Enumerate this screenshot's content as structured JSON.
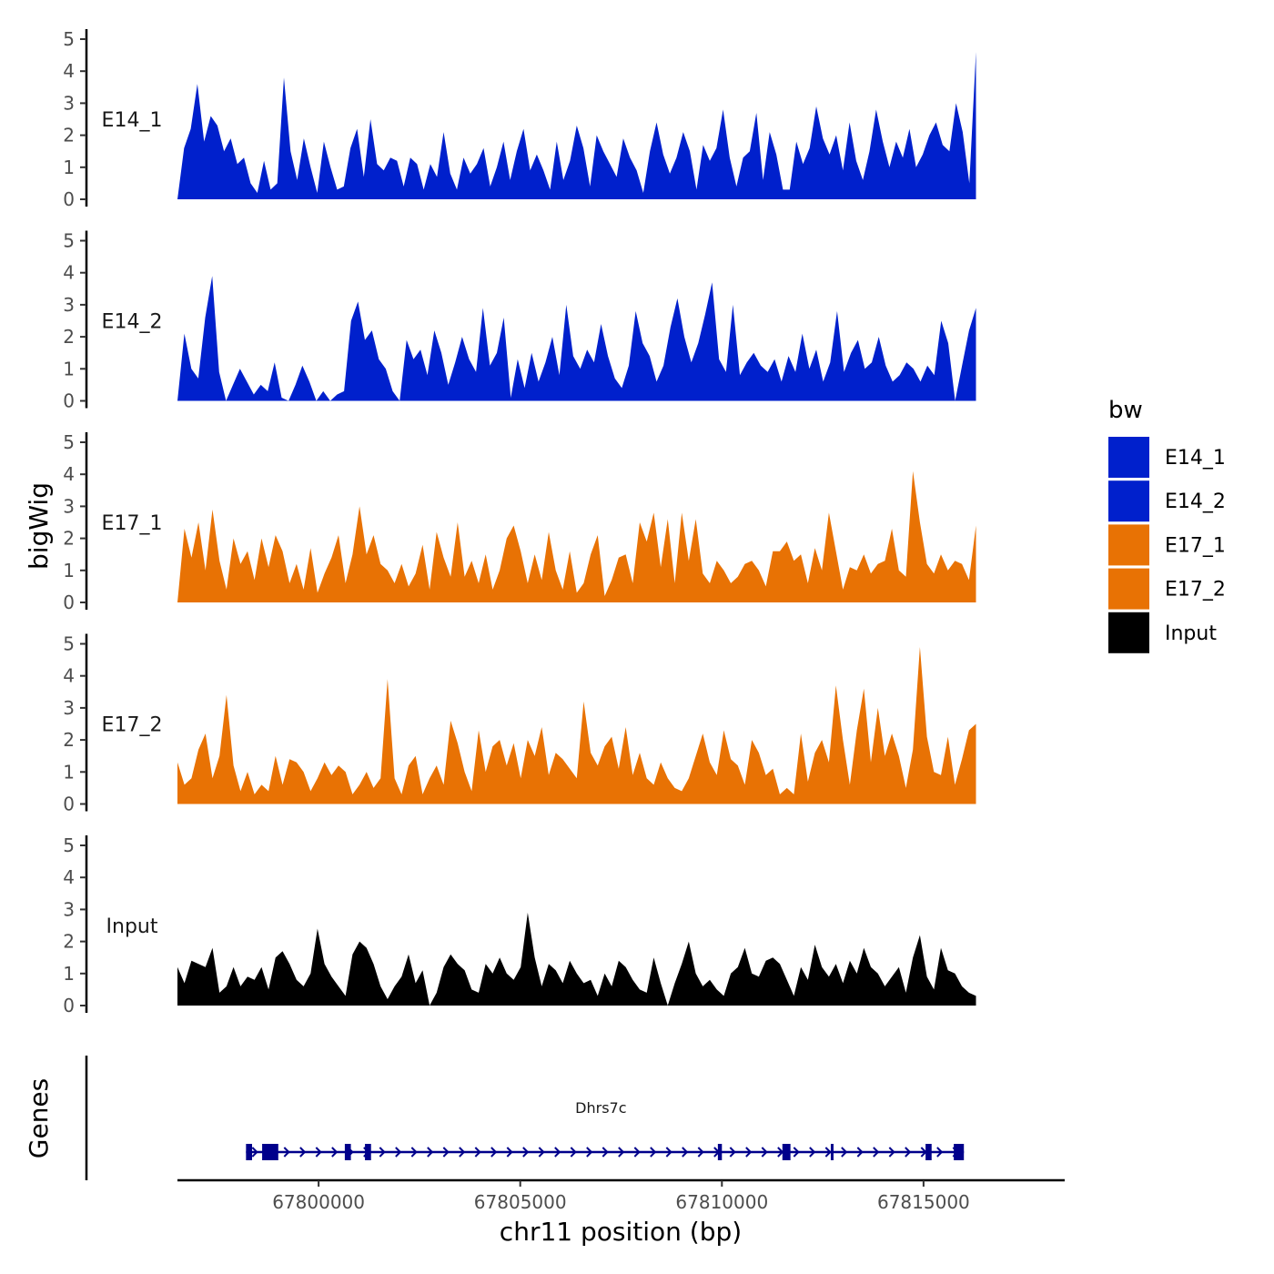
{
  "chart_data": {
    "type": "area",
    "title": "",
    "xlabel": "chr11 position (bp)",
    "ylabel": "bigWig",
    "genes_label": "Genes",
    "xlim": [
      67796500,
      67818500
    ],
    "data_range": [
      67796500,
      67816300
    ],
    "ylim": [
      0,
      5
    ],
    "y_ticks": [
      "0",
      "1",
      "2",
      "3",
      "4",
      "5"
    ],
    "x_ticks": [
      {
        "value": 67800000,
        "label": "67800000"
      },
      {
        "value": 67805000,
        "label": "67805000"
      },
      {
        "value": 67810000,
        "label": "67810000"
      },
      {
        "value": 67815000,
        "label": "67815000"
      }
    ],
    "legend": {
      "title": "bw",
      "position": "right",
      "entries": [
        {
          "name": "E14_1",
          "color": "#0020CC"
        },
        {
          "name": "E14_2",
          "color": "#0020CC"
        },
        {
          "name": "E17_1",
          "color": "#E87204"
        },
        {
          "name": "E17_2",
          "color": "#E87204"
        },
        {
          "name": "Input",
          "color": "#000000"
        }
      ]
    },
    "series": [
      {
        "name": "E14_1",
        "color": "#0020CC",
        "values": [
          0,
          1.6,
          2.2,
          3.6,
          1.8,
          2.6,
          2.3,
          1.5,
          1.9,
          1.1,
          1.3,
          0.5,
          0.2,
          1.2,
          0.3,
          0.5,
          3.8,
          1.5,
          0.6,
          1.9,
          1.0,
          0.2,
          1.8,
          1.0,
          0.3,
          0.4,
          1.6,
          2.2,
          0.7,
          2.5,
          1.1,
          0.9,
          1.3,
          1.2,
          0.4,
          1.3,
          1.1,
          0.3,
          1.1,
          0.7,
          2.1,
          0.8,
          0.3,
          1.3,
          0.8,
          1.1,
          1.6,
          0.4,
          1.0,
          1.8,
          0.6,
          1.5,
          2.2,
          0.9,
          1.4,
          0.9,
          0.3,
          1.8,
          0.6,
          1.2,
          2.3,
          1.6,
          0.4,
          2.0,
          1.5,
          1.1,
          0.7,
          1.9,
          1.3,
          0.9,
          0.2,
          1.5,
          2.4,
          1.4,
          0.8,
          1.3,
          2.1,
          1.5,
          0.3,
          1.7,
          1.2,
          1.6,
          2.8,
          1.3,
          0.4,
          1.3,
          1.5,
          2.7,
          0.6,
          2.1,
          1.4,
          0.3,
          0.3,
          1.8,
          1.1,
          1.6,
          2.9,
          1.9,
          1.4,
          2.0,
          0.9,
          2.4,
          1.2,
          0.6,
          1.5,
          2.8,
          1.8,
          1.0,
          1.8,
          1.3,
          2.2,
          1.0,
          1.4,
          2.0,
          2.4,
          1.7,
          1.5,
          3.0,
          2.1,
          0.5,
          4.6
        ]
      },
      {
        "name": "E14_2",
        "color": "#0020CC",
        "values": [
          0,
          2.1,
          1.0,
          0.7,
          2.6,
          3.9,
          0.9,
          0,
          0.5,
          1.0,
          0.6,
          0.2,
          0.5,
          0.3,
          1.2,
          0.1,
          0,
          0.5,
          1.1,
          0.6,
          0,
          0.3,
          0,
          0.2,
          0.3,
          2.5,
          3.1,
          1.9,
          2.2,
          1.3,
          1.0,
          0.3,
          0,
          1.9,
          1.3,
          1.6,
          0.8,
          2.2,
          1.5,
          0.5,
          1.2,
          2.0,
          1.3,
          0.9,
          2.9,
          1.1,
          1.5,
          2.6,
          0.1,
          1.3,
          0.4,
          1.5,
          0.6,
          1.2,
          2.0,
          0.8,
          3.0,
          1.4,
          1.0,
          1.6,
          1.2,
          2.4,
          1.4,
          0.7,
          0.4,
          1.1,
          2.8,
          1.8,
          1.4,
          0.6,
          1.1,
          2.3,
          3.2,
          2.0,
          1.2,
          1.8,
          2.7,
          3.7,
          1.3,
          0.9,
          3.0,
          0.8,
          1.2,
          1.5,
          1.1,
          0.9,
          1.3,
          0.6,
          1.4,
          0.9,
          2.1,
          1.0,
          1.6,
          0.6,
          1.2,
          2.8,
          0.9,
          1.5,
          1.9,
          1.0,
          1.2,
          2.0,
          1.1,
          0.6,
          0.8,
          1.2,
          1.0,
          0.6,
          1.1,
          0.8,
          2.5,
          1.8,
          0,
          1.1,
          2.2,
          2.9
        ]
      },
      {
        "name": "E17_1",
        "color": "#E87204",
        "values": [
          0,
          2.3,
          1.4,
          2.5,
          1.0,
          2.9,
          1.3,
          0.4,
          2.0,
          1.2,
          1.6,
          0.7,
          2.0,
          1.1,
          2.1,
          1.6,
          0.6,
          1.2,
          0.4,
          1.7,
          0.3,
          0.9,
          1.4,
          2.1,
          0.6,
          1.5,
          3.0,
          1.5,
          2.1,
          1.2,
          1.0,
          0.6,
          1.2,
          0.5,
          0.9,
          1.8,
          0.4,
          2.2,
          1.4,
          0.8,
          2.5,
          0.8,
          1.3,
          0.6,
          1.5,
          0.4,
          1.0,
          2.0,
          2.4,
          1.6,
          0.6,
          1.5,
          0.7,
          2.2,
          1.0,
          0.4,
          1.6,
          0.3,
          0.6,
          1.5,
          2.1,
          0.2,
          0.7,
          1.4,
          1.5,
          0.6,
          2.5,
          1.9,
          2.8,
          1.1,
          2.6,
          0.6,
          2.8,
          1.3,
          2.6,
          0.9,
          0.6,
          1.3,
          1.0,
          0.6,
          0.8,
          1.2,
          1.3,
          1.0,
          0.5,
          1.6,
          1.6,
          1.9,
          1.3,
          1.5,
          0.6,
          1.7,
          1.0,
          2.8,
          1.6,
          0.4,
          1.1,
          1.0,
          1.5,
          0.9,
          1.2,
          1.3,
          2.3,
          1.0,
          0.8,
          4.1,
          2.5,
          1.2,
          0.9,
          1.5,
          1.0,
          1.3,
          1.2,
          0.7,
          2.4
        ]
      },
      {
        "name": "E17_2",
        "color": "#E87204",
        "values": [
          1.3,
          0.6,
          0.8,
          1.7,
          2.2,
          0.8,
          1.5,
          3.4,
          1.2,
          0.4,
          1.0,
          0.3,
          0.6,
          0.4,
          1.5,
          0.6,
          1.4,
          1.3,
          1.0,
          0.4,
          0.8,
          1.3,
          0.9,
          1.2,
          1.0,
          0.3,
          0.6,
          1.0,
          0.5,
          0.8,
          3.9,
          0.8,
          0.3,
          1.2,
          1.5,
          0.3,
          0.8,
          1.2,
          0.6,
          2.6,
          1.9,
          1.0,
          0.4,
          2.3,
          1.0,
          1.8,
          2.0,
          1.2,
          1.9,
          0.8,
          2.0,
          1.5,
          2.4,
          0.9,
          1.6,
          1.4,
          1.1,
          0.8,
          3.2,
          1.6,
          1.2,
          1.8,
          2.1,
          1.1,
          2.4,
          0.9,
          1.6,
          0.8,
          0.6,
          1.3,
          0.8,
          0.5,
          0.4,
          0.8,
          1.5,
          2.2,
          1.3,
          0.9,
          2.3,
          1.4,
          1.2,
          0.6,
          2.0,
          1.6,
          0.9,
          1.1,
          0.3,
          0.5,
          0.3,
          2.2,
          0.7,
          1.6,
          2.0,
          1.3,
          3.7,
          2.0,
          0.6,
          2.3,
          3.6,
          1.3,
          3.0,
          1.5,
          2.2,
          1.5,
          0.5,
          1.7,
          4.9,
          2.1,
          1.0,
          0.9,
          2.1,
          0.6,
          1.4,
          2.3,
          2.5
        ]
      },
      {
        "name": "Input",
        "color": "#000000",
        "values": [
          1.2,
          0.7,
          1.4,
          1.3,
          1.2,
          1.8,
          0.4,
          0.6,
          1.2,
          0.6,
          0.9,
          0.8,
          1.2,
          0.5,
          1.5,
          1.7,
          1.3,
          0.8,
          0.6,
          1.0,
          2.4,
          1.3,
          0.9,
          0.6,
          0.3,
          1.6,
          2.0,
          1.8,
          1.3,
          0.6,
          0.2,
          0.6,
          0.9,
          1.6,
          0.7,
          1.1,
          0,
          0.4,
          1.2,
          1.6,
          1.3,
          1.1,
          0.5,
          0.4,
          1.3,
          1.0,
          1.5,
          1.0,
          0.8,
          1.2,
          2.9,
          1.5,
          0.6,
          1.3,
          1.1,
          0.7,
          1.4,
          1.0,
          0.7,
          0.8,
          0.3,
          1.0,
          0.6,
          1.4,
          1.2,
          0.8,
          0.5,
          0.4,
          1.5,
          0.7,
          0,
          0.7,
          1.3,
          2.0,
          1.0,
          0.6,
          0.8,
          0.5,
          0.3,
          1.0,
          1.2,
          1.8,
          1.0,
          0.9,
          1.4,
          1.5,
          1.3,
          0.8,
          0.3,
          1.2,
          0.8,
          1.9,
          1.2,
          0.9,
          1.3,
          0.7,
          1.4,
          1.0,
          1.8,
          1.2,
          1.0,
          0.6,
          0.9,
          1.2,
          0.4,
          1.5,
          2.2,
          0.9,
          0.5,
          1.8,
          1.1,
          1.0,
          0.6,
          0.4,
          0.3
        ]
      }
    ],
    "gene": {
      "name": "Dhrs7c",
      "strand": "+",
      "start": 67798200,
      "end": 67816000,
      "exons": [
        [
          67798200,
          67798350
        ],
        [
          67798600,
          67799000
        ],
        [
          67800650,
          67800800
        ],
        [
          67801150,
          67801300
        ],
        [
          67809900,
          67810000
        ],
        [
          67811500,
          67811700
        ],
        [
          67812700,
          67812750
        ],
        [
          67815050,
          67815200
        ],
        [
          67815750,
          67816000
        ]
      ],
      "color": "#00008B"
    }
  }
}
